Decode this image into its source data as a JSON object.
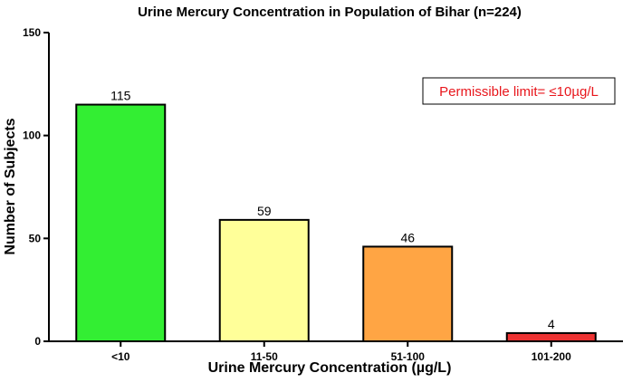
{
  "chart_data": {
    "type": "bar",
    "title": "Urine Mercury Concentration in Population of Bihar (n=224)",
    "xlabel": "Urine Mercury Concentration (µg/L)",
    "ylabel": "Number of Subjects",
    "categories": [
      "<10",
      "11-50",
      "51-100",
      "101-200"
    ],
    "values": [
      115,
      59,
      46,
      4
    ],
    "data_labels": [
      "115",
      "59",
      "46",
      "4"
    ],
    "bar_colors": [
      "#33ee33",
      "#ffff99",
      "#ffa544",
      "#ee3333"
    ],
    "ylim": [
      0,
      150
    ],
    "yticks": [
      0,
      50,
      100,
      150
    ],
    "ytick_labels": [
      "0",
      "50",
      "100",
      "150"
    ],
    "grid": false,
    "legend": "none",
    "annotation": {
      "text": "Permissible limit= ≤10µg/L",
      "color": "#e8161c",
      "placement": "top-right"
    }
  }
}
